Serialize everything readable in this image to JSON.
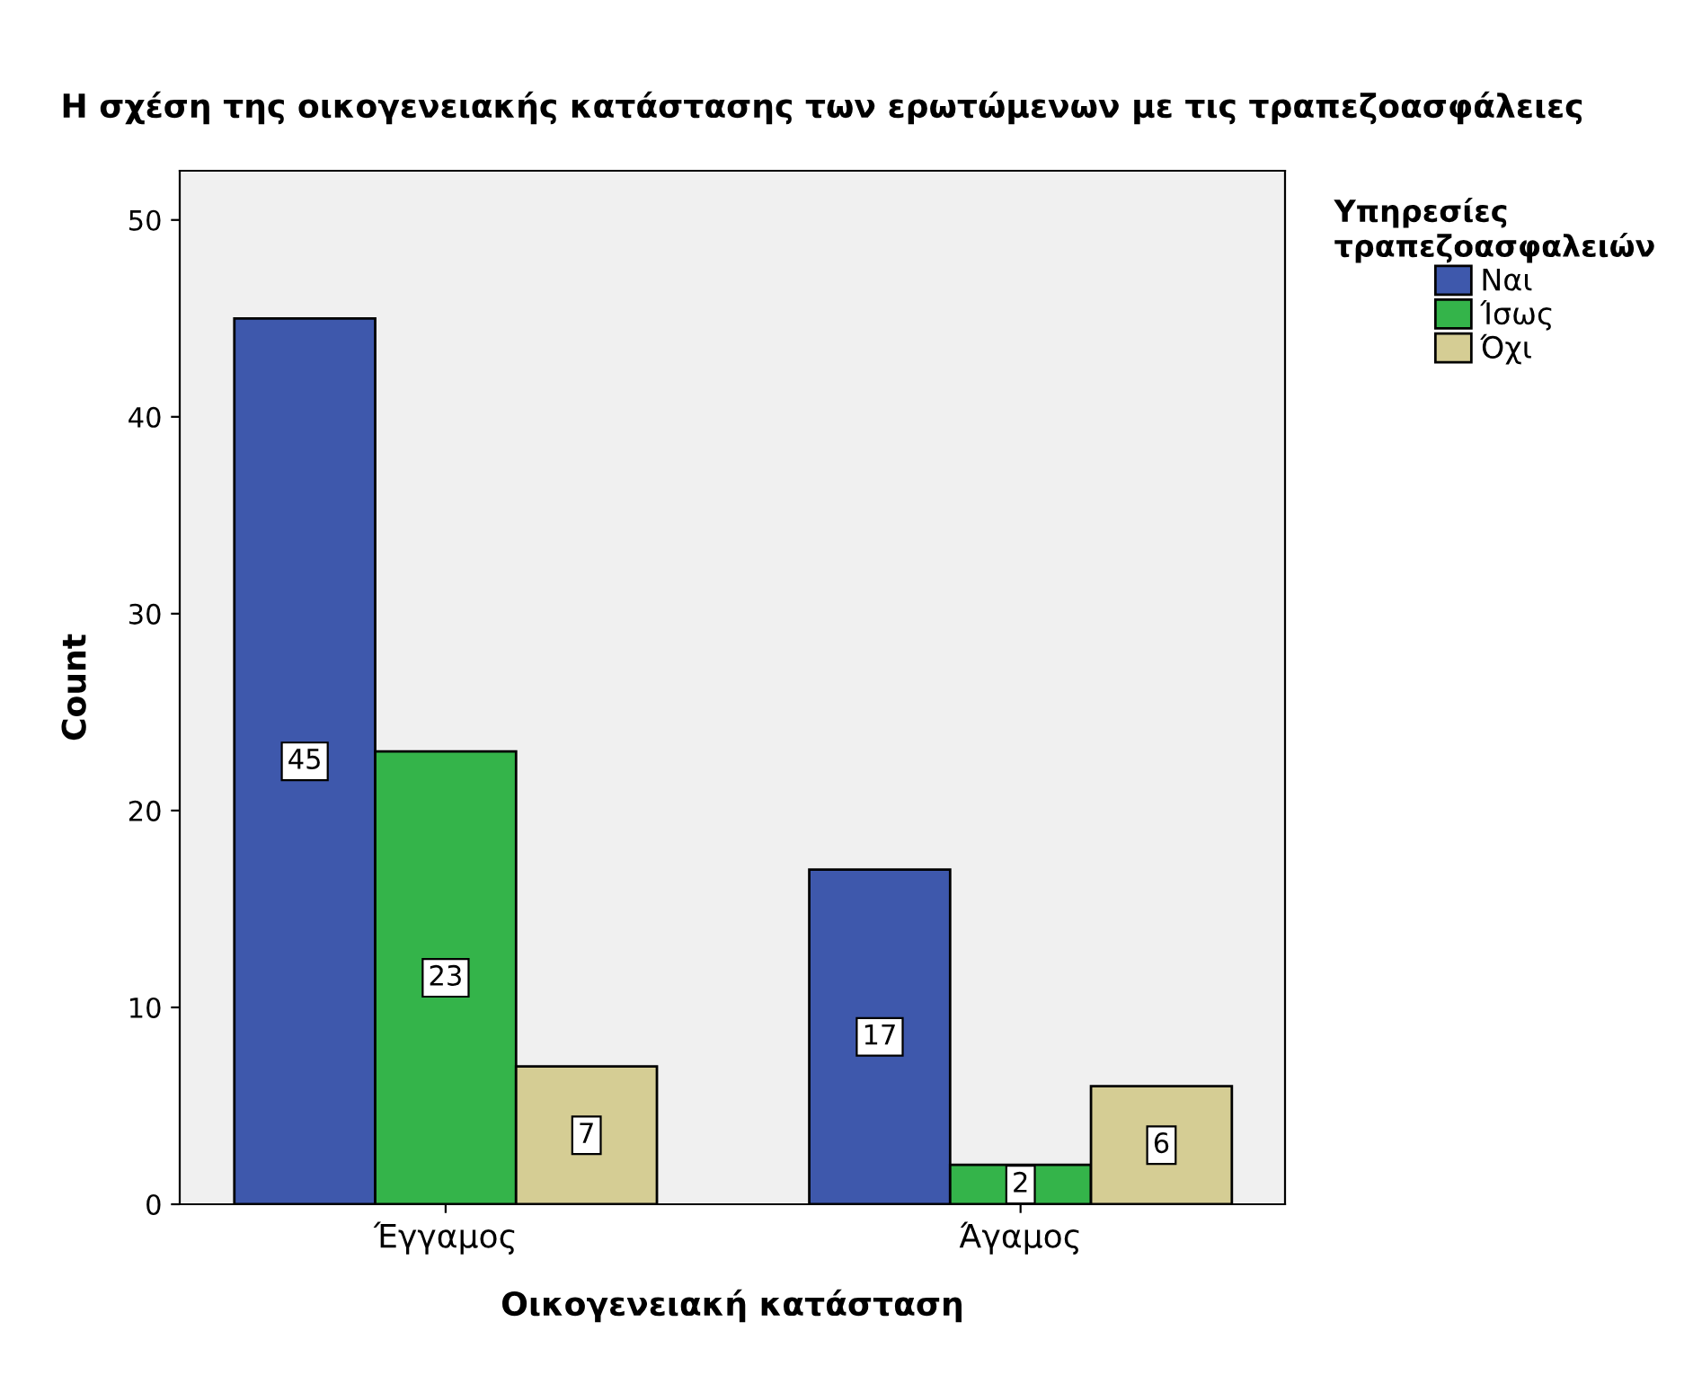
{
  "chart_data": {
    "type": "bar",
    "title": "Η σχέση της οικογενειακής κατάστασης των ερωτώμενων με τις τραπεζοασφάλειες",
    "xlabel": "Οικογενειακή κατάσταση",
    "ylabel": "Count",
    "legend_title": "Υπηρεσίες\nτραπεζοασφαλειών",
    "categories": [
      "Έγγαμος",
      "Άγαμος"
    ],
    "series": [
      {
        "name": "Ναι",
        "color": "#3e58ac",
        "values": [
          45,
          17
        ]
      },
      {
        "name": "Ίσως",
        "color": "#34b44a",
        "values": [
          23,
          2
        ]
      },
      {
        "name": "Όχι",
        "color": "#d5cd94",
        "values": [
          7,
          6
        ]
      }
    ],
    "ylim": [
      0,
      52.5
    ],
    "yticks": [
      0,
      10,
      20,
      30,
      40,
      50
    ],
    "data_labels": true,
    "grid": false,
    "legend": "top right"
  }
}
